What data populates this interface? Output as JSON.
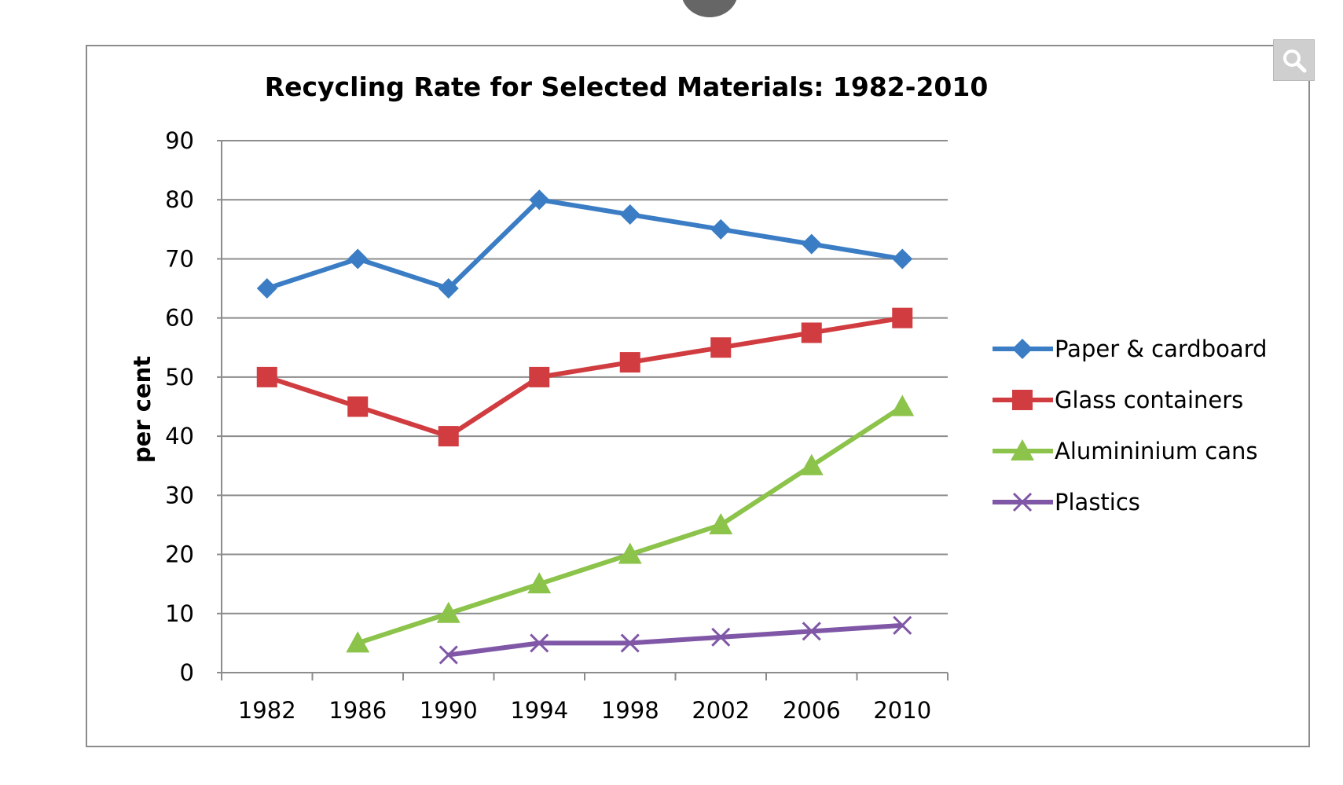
{
  "chart_data": {
    "type": "line",
    "title": "Recycling Rate for Selected Materials: 1982-2010",
    "xlabel": "",
    "ylabel": "per cent",
    "categories": [
      "1982",
      "1986",
      "1990",
      "1994",
      "1998",
      "2002",
      "2006",
      "2010"
    ],
    "ylim": [
      0,
      90
    ],
    "yticks": [
      "0",
      "10",
      "20",
      "30",
      "40",
      "50",
      "60",
      "70",
      "80",
      "90"
    ],
    "grid": true,
    "legend": "right",
    "series": [
      {
        "name": "Paper & cardboard",
        "color": "#3b7dc4",
        "marker": "diamond",
        "values": [
          65,
          70,
          65,
          80,
          77.5,
          75,
          72.5,
          70
        ]
      },
      {
        "name": "Glass containers",
        "color": "#d03c3f",
        "marker": "square",
        "values": [
          50,
          45,
          40,
          50,
          52.5,
          55,
          57.5,
          60
        ]
      },
      {
        "name": "Alumininium cans",
        "color": "#8cc34a",
        "marker": "triangle",
        "values": [
          null,
          5,
          10,
          15,
          20,
          25,
          35,
          45
        ]
      },
      {
        "name": "Plastics",
        "color": "#7f57a6",
        "marker": "x",
        "values": [
          null,
          null,
          3,
          5,
          5,
          6,
          7,
          8
        ]
      }
    ]
  },
  "zoom_button": {
    "icon": "magnifier-icon"
  }
}
